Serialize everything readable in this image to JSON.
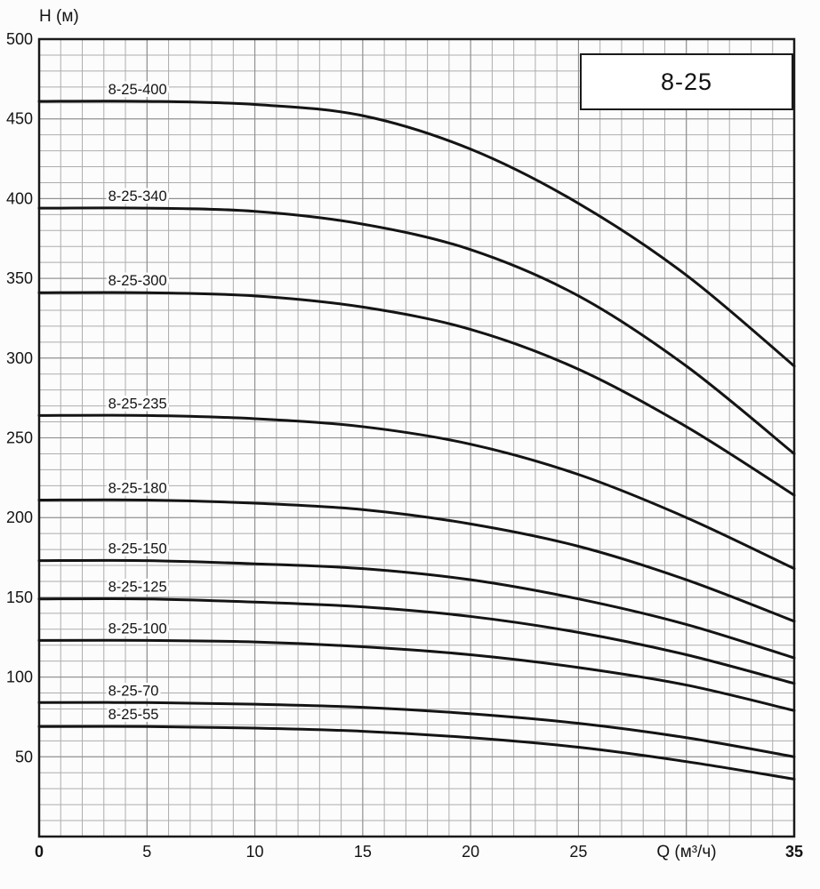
{
  "chart_data": {
    "type": "line",
    "title": "8-25",
    "xlabel": "Q (м³/ч)",
    "ylabel": "H (м)",
    "xlim": [
      0,
      35
    ],
    "ylim": [
      0,
      500
    ],
    "xlabel_at": 30,
    "grid": {
      "minor_x": 1,
      "minor_y": 10,
      "major_x": 5,
      "major_y": 50,
      "visible": true
    },
    "legend_position": "top-right",
    "x_ticks": [
      {
        "v": 0,
        "label": "0",
        "bold": true
      },
      {
        "v": 5,
        "label": "5"
      },
      {
        "v": 10,
        "label": "10"
      },
      {
        "v": 15,
        "label": "15"
      },
      {
        "v": 20,
        "label": "20"
      },
      {
        "v": 25,
        "label": "25"
      },
      {
        "v": 35,
        "label": "35",
        "bold": true
      }
    ],
    "y_ticks": [
      {
        "v": 50,
        "label": "50"
      },
      {
        "v": 100,
        "label": "100"
      },
      {
        "v": 150,
        "label": "150"
      },
      {
        "v": 200,
        "label": "200"
      },
      {
        "v": 250,
        "label": "250"
      },
      {
        "v": 300,
        "label": "300"
      },
      {
        "v": 350,
        "label": "350"
      },
      {
        "v": 400,
        "label": "400"
      },
      {
        "v": 450,
        "label": "450"
      },
      {
        "v": 500,
        "label": "500"
      }
    ],
    "x": [
      0,
      5,
      10,
      15,
      20,
      25,
      30,
      35
    ],
    "series": [
      {
        "name": "8-25-400",
        "label_x": 3.2,
        "values": [
          461,
          461,
          459,
          452,
          431,
          397,
          352,
          295
        ]
      },
      {
        "name": "8-25-340",
        "label_x": 3.2,
        "values": [
          394,
          394,
          392,
          384,
          368,
          339,
          295,
          240
        ]
      },
      {
        "name": "8-25-300",
        "label_x": 3.2,
        "values": [
          341,
          341,
          339,
          332,
          318,
          293,
          257,
          214
        ]
      },
      {
        "name": "8-25-235",
        "label_x": 3.2,
        "values": [
          264,
          264,
          262,
          257,
          246,
          227,
          200,
          168
        ]
      },
      {
        "name": "8-25-180",
        "label_x": 3.2,
        "values": [
          211,
          211,
          209,
          205,
          196,
          182,
          161,
          135
        ]
      },
      {
        "name": "8-25-150",
        "label_x": 3.2,
        "values": [
          173,
          173,
          171,
          168,
          161,
          149,
          133,
          112
        ]
      },
      {
        "name": "8-25-125",
        "label_x": 3.2,
        "values": [
          149,
          149,
          147,
          144,
          138,
          128,
          114,
          96
        ]
      },
      {
        "name": "8-25-100",
        "label_x": 3.2,
        "values": [
          123,
          123,
          122,
          119,
          114,
          106,
          95,
          79
        ]
      },
      {
        "name": "8-25-70",
        "label_x": 3.2,
        "values": [
          84,
          84,
          83,
          81,
          77,
          71,
          62,
          50
        ]
      },
      {
        "name": "8-25-55",
        "label_x": 3.2,
        "values": [
          69,
          69,
          68,
          66,
          62,
          56,
          47,
          36
        ]
      }
    ],
    "colors": {
      "curve": "#141414",
      "grid_minor": "#adadad",
      "grid_major": "#8a8a8a",
      "border": "#1a1a1a",
      "background": "#fcfcfc",
      "text": "#141414"
    }
  }
}
